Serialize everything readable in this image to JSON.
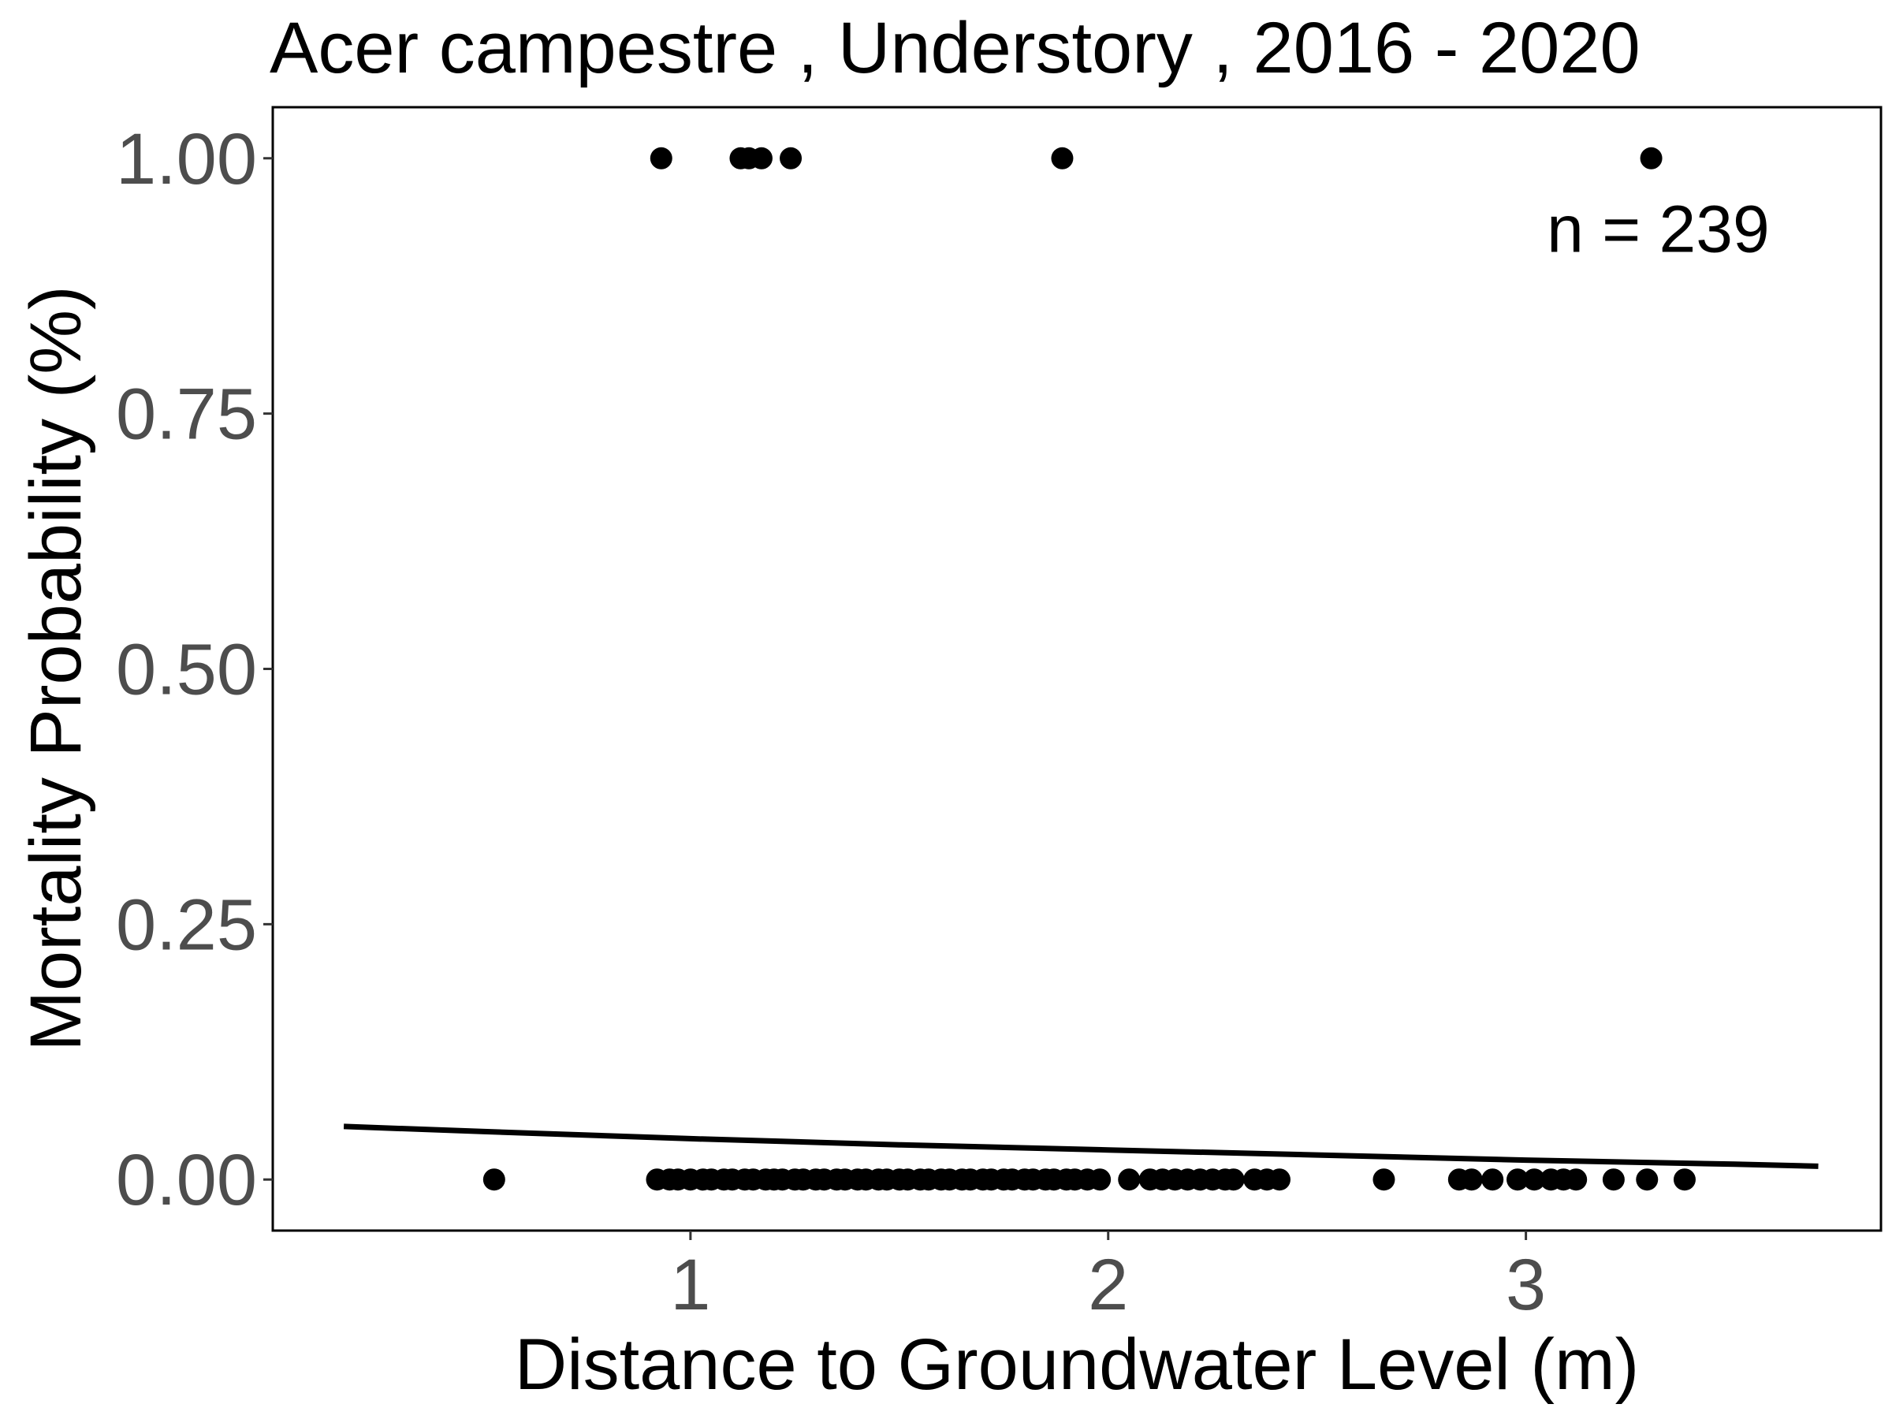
{
  "chart_data": {
    "type": "scatter",
    "title": "Acer campestre , Understory , 2016 - 2020",
    "xlabel": "Distance to Groundwater Level (m)",
    "ylabel": "Mortality Probability (%)",
    "xlim": [
      0.0,
      3.85
    ],
    "ylim": [
      -0.05,
      1.05
    ],
    "x_ticks": [
      1,
      2,
      3
    ],
    "x_tick_labels": [
      "1",
      "2",
      "3"
    ],
    "y_ticks": [
      0.0,
      0.25,
      0.5,
      0.75,
      1.0
    ],
    "y_tick_labels": [
      "0.00",
      "0.25",
      "0.50",
      "0.75",
      "1.00"
    ],
    "grid": false,
    "annotation": {
      "text": "n =  239",
      "x": 3.05,
      "y": 0.93
    },
    "points": {
      "color": "#000000",
      "dead_y1": [
        0.93,
        1.12,
        1.14,
        1.17,
        1.24,
        1.89,
        3.3
      ],
      "alive_y0": [
        0.53,
        0.92,
        0.95,
        0.97,
        1.0,
        1.03,
        1.05,
        1.08,
        1.1,
        1.13,
        1.15,
        1.18,
        1.2,
        1.22,
        1.25,
        1.27,
        1.3,
        1.32,
        1.35,
        1.37,
        1.4,
        1.42,
        1.45,
        1.47,
        1.5,
        1.52,
        1.55,
        1.57,
        1.6,
        1.62,
        1.65,
        1.67,
        1.7,
        1.72,
        1.75,
        1.77,
        1.8,
        1.82,
        1.85,
        1.87,
        1.9,
        1.92,
        1.95,
        1.98,
        2.05,
        2.1,
        2.13,
        2.16,
        2.19,
        2.22,
        2.25,
        2.28,
        2.3,
        2.35,
        2.38,
        2.41,
        2.66,
        2.84,
        2.87,
        2.92,
        2.98,
        3.02,
        3.06,
        3.09,
        3.12,
        3.21,
        3.29,
        3.38
      ]
    },
    "fit_line": {
      "color": "#000000",
      "x": [
        0.17,
        0.5,
        1.0,
        1.5,
        2.0,
        2.5,
        3.0,
        3.5,
        3.7
      ],
      "y": [
        0.052,
        0.047,
        0.04,
        0.034,
        0.029,
        0.024,
        0.019,
        0.015,
        0.013
      ]
    }
  }
}
